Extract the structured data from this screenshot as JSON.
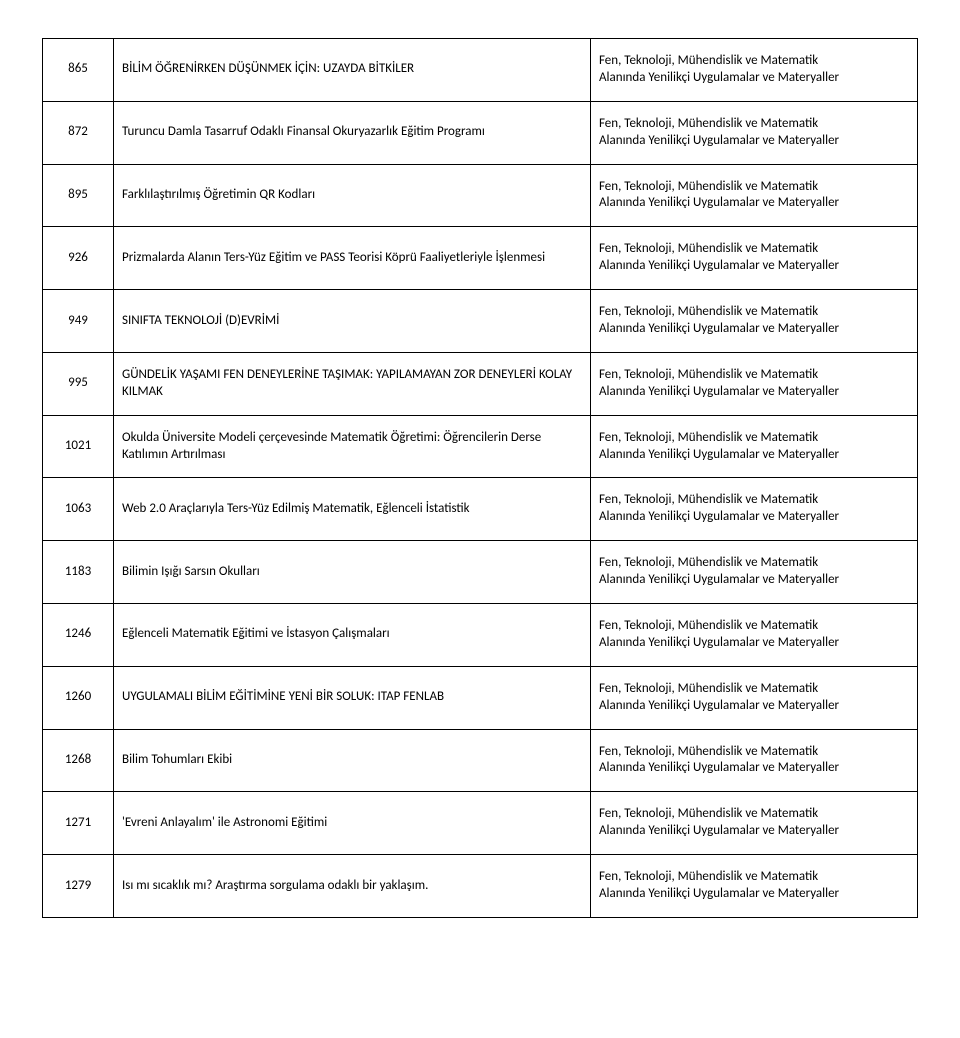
{
  "table": {
    "category_text": "Fen, Teknoloji, Mühendislik ve Matematik\nAlanında Yenilikçi Uygulamalar ve Materyaller",
    "rows": [
      {
        "id": "865",
        "title": "BİLİM ÖĞRENİRKEN DÜŞÜNMEK İÇİN: UZAYDA BİTKİLER"
      },
      {
        "id": "872",
        "title": "Turuncu Damla Tasarruf Odaklı Finansal Okuryazarlık Eğitim Programı"
      },
      {
        "id": "895",
        "title": "Farklılaştırılmış Öğretimin QR Kodları"
      },
      {
        "id": "926",
        "title": "Prizmalarda Alanın Ters-Yüz Eğitim ve PASS Teorisi Köprü Faaliyetleriyle İşlenmesi"
      },
      {
        "id": "949",
        "title": "SINIFTA TEKNOLOJİ (D)EVRİMİ"
      },
      {
        "id": "995",
        "title": "GÜNDELİK YAŞAMI FEN DENEYLERİNE TAŞIMAK: YAPILAMAYAN ZOR DENEYLERİ KOLAY KILMAK"
      },
      {
        "id": "1021",
        "title": "Okulda Üniversite Modeli çerçevesinde Matematik Öğretimi: Öğrencilerin Derse Katılımın Artırılması"
      },
      {
        "id": "1063",
        "title": "Web 2.0 Araçlarıyla Ters-Yüz Edilmiş Matematik, Eğlenceli İstatistik"
      },
      {
        "id": "1183",
        "title": "Bilimin Işığı Sarsın Okulları"
      },
      {
        "id": "1246",
        "title": "Eğlenceli Matematik Eğitimi ve İstasyon Çalışmaları"
      },
      {
        "id": "1260",
        "title": "UYGULAMALI BİLİM EĞİTİMİNE YENİ BİR SOLUK: ITAP FENLAB"
      },
      {
        "id": "1268",
        "title": "Bilim Tohumları Ekibi"
      },
      {
        "id": "1271",
        "title": "'Evreni Anlayalım' ile Astronomi Eğitimi"
      },
      {
        "id": "1279",
        "title": "Isı mı sıcaklık mı? Araştırma sorgulama odaklı bir yaklaşım."
      }
    ]
  }
}
